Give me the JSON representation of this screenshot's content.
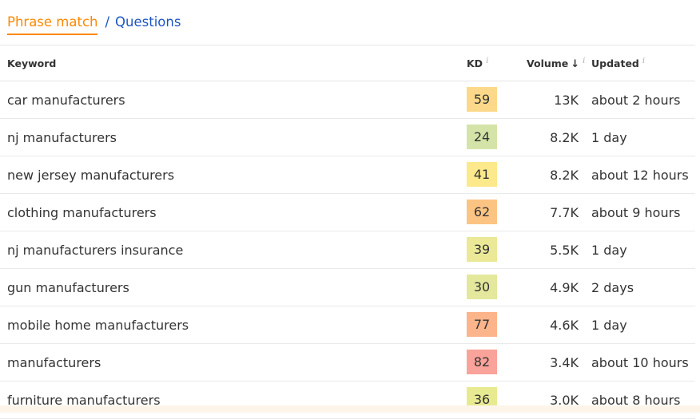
{
  "tabs": {
    "active": "Phrase match",
    "separator": "/",
    "other": "Questions"
  },
  "columns": {
    "keyword": "Keyword",
    "kd": "KD",
    "volume": "Volume",
    "volume_sort": "↓",
    "updated": "Updated",
    "info": "i"
  },
  "rows": [
    {
      "keyword": "car manufacturers",
      "kd": "59",
      "kd_color": "#fcd98a",
      "volume": "13K",
      "updated": "about 2 hours"
    },
    {
      "keyword": "nj manufacturers",
      "kd": "24",
      "kd_color": "#d4e4a8",
      "volume": "8.2K",
      "updated": "1 day"
    },
    {
      "keyword": "new jersey manufacturers",
      "kd": "41",
      "kd_color": "#fbe98c",
      "volume": "8.2K",
      "updated": "about 12 hours"
    },
    {
      "keyword": "clothing manufacturers",
      "kd": "62",
      "kd_color": "#fcc483",
      "volume": "7.7K",
      "updated": "about 9 hours"
    },
    {
      "keyword": "nj manufacturers insurance",
      "kd": "39",
      "kd_color": "#ebe897",
      "volume": "5.5K",
      "updated": "1 day"
    },
    {
      "keyword": "gun manufacturers",
      "kd": "30",
      "kd_color": "#e4e89c",
      "volume": "4.9K",
      "updated": "2 days"
    },
    {
      "keyword": "mobile home manufacturers",
      "kd": "77",
      "kd_color": "#fcb48a",
      "volume": "4.6K",
      "updated": "1 day"
    },
    {
      "keyword": "manufacturers",
      "kd": "82",
      "kd_color": "#f9a39a",
      "volume": "3.4K",
      "updated": "about 10 hours"
    },
    {
      "keyword": "furniture manufacturers",
      "kd": "36",
      "kd_color": "#e8ea92",
      "volume": "3.0K",
      "updated": "about 8 hours"
    }
  ]
}
